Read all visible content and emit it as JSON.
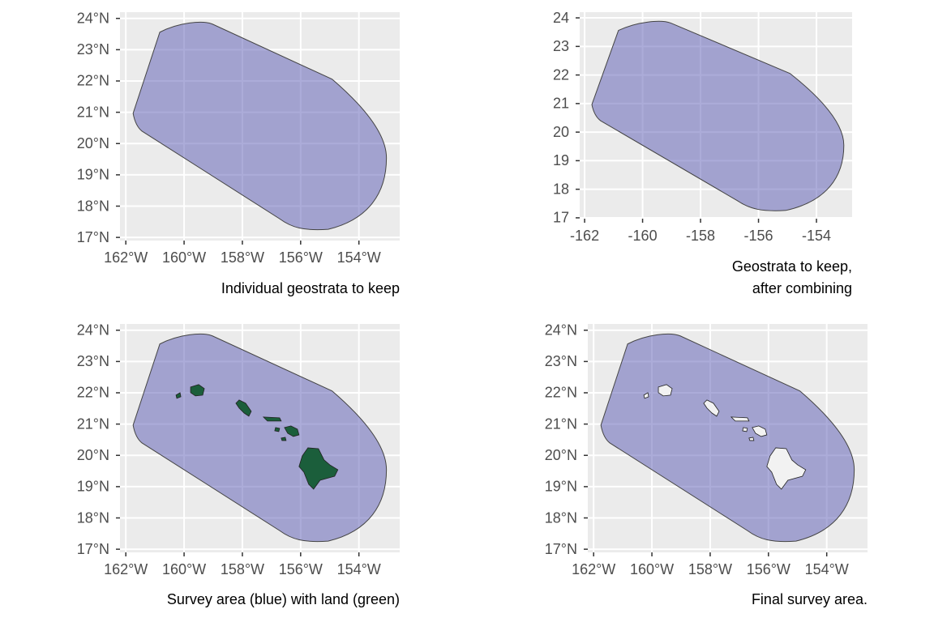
{
  "panels": [
    {
      "caption": [
        "Individual geostrata to keep"
      ],
      "xlim": [
        -162.2,
        -152.6
      ],
      "ylim": [
        16.9,
        24.2
      ],
      "xticks": [
        {
          "value": -162,
          "label": "162°W"
        },
        {
          "value": -160,
          "label": "160°W"
        },
        {
          "value": -158,
          "label": "158°W"
        },
        {
          "value": -156,
          "label": "156°W"
        },
        {
          "value": -154,
          "label": "154°W"
        }
      ],
      "yticks": [
        {
          "value": 17,
          "label": "17°N"
        },
        {
          "value": 18,
          "label": "18°N"
        },
        {
          "value": 19,
          "label": "19°N"
        },
        {
          "value": 20,
          "label": "20°N"
        },
        {
          "value": 21,
          "label": "21°N"
        },
        {
          "value": 22,
          "label": "22°N"
        },
        {
          "value": 23,
          "label": "23°N"
        },
        {
          "value": 24,
          "label": "24°N"
        }
      ],
      "area_color": "#5a5ab4"
    },
    {
      "caption": [
        "Geostrata to keep,",
        "after combining"
      ],
      "xlim": [
        -162.17,
        -152.77
      ],
      "ylim": [
        16.97,
        24.2
      ],
      "xticks": [
        -162,
        -160,
        -158,
        -156,
        -154
      ],
      "yticks": [
        17,
        18,
        19,
        20,
        21,
        22,
        23,
        24
      ],
      "area_color": "#5a5ab4"
    },
    {
      "caption": [
        "Survey area (blue) with land (green)"
      ],
      "xlim": [
        -162.2,
        -152.6
      ],
      "ylim": [
        16.9,
        24.2
      ],
      "xticks": [
        {
          "value": -162,
          "label": "162°W"
        },
        {
          "value": -160,
          "label": "160°W"
        },
        {
          "value": -158,
          "label": "158°W"
        },
        {
          "value": -156,
          "label": "156°W"
        },
        {
          "value": -154,
          "label": "154°W"
        }
      ],
      "yticks": [
        {
          "value": 17,
          "label": "17°N"
        },
        {
          "value": 18,
          "label": "18°N"
        },
        {
          "value": 19,
          "label": "19°N"
        },
        {
          "value": 20,
          "label": "20°N"
        },
        {
          "value": 21,
          "label": "21°N"
        },
        {
          "value": 22,
          "label": "22°N"
        },
        {
          "value": 23,
          "label": "23°N"
        },
        {
          "value": 24,
          "label": "24°N"
        }
      ],
      "area_color": "#5a5ab4",
      "land_color": "#1b5e3b"
    },
    {
      "caption": [
        "Final survey area."
      ],
      "xlim": [
        -162.2,
        -152.6
      ],
      "ylim": [
        16.9,
        24.2
      ],
      "xticks": [
        {
          "value": -162,
          "label": "162°W"
        },
        {
          "value": -160,
          "label": "160°W"
        },
        {
          "value": -158,
          "label": "158°W"
        },
        {
          "value": -156,
          "label": "156°W"
        },
        {
          "value": -154,
          "label": "154°W"
        }
      ],
      "yticks": [
        {
          "value": 17,
          "label": "17°N"
        },
        {
          "value": 18,
          "label": "18°N"
        },
        {
          "value": 19,
          "label": "19°N"
        },
        {
          "value": 20,
          "label": "20°N"
        },
        {
          "value": 21,
          "label": "21°N"
        },
        {
          "value": 22,
          "label": "22°N"
        },
        {
          "value": 23,
          "label": "23°N"
        },
        {
          "value": 24,
          "label": "24°N"
        }
      ],
      "area_color": "#5a5ab4",
      "land_color": "#f2f2f2"
    }
  ]
}
